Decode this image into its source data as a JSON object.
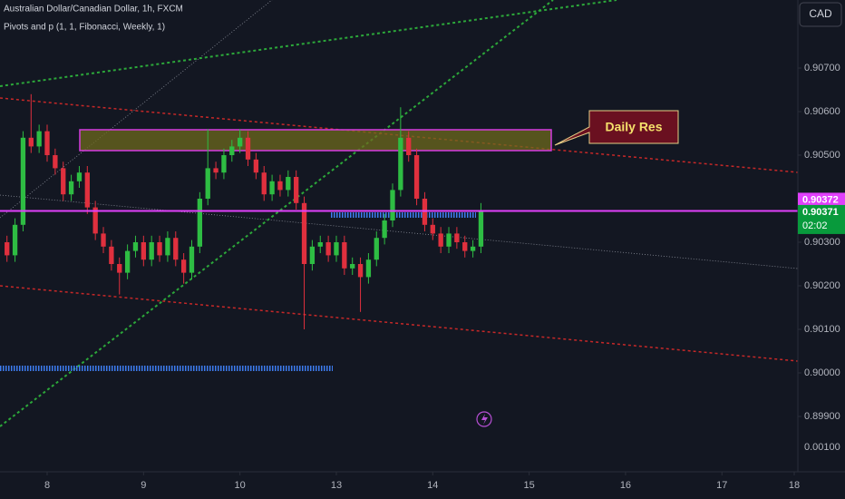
{
  "chart_data": {
    "type": "candlestick",
    "title": "Australian Dollar/Canadian Dollar, 1h, FXCM",
    "subtitle": "Pivots and p (1, 1, Fibonacci, Weekly, 1)",
    "currency_button": "CAD",
    "annotation": "Daily Res",
    "indicator_axis_label": "0.00100",
    "price_line": {
      "value": 0.90372,
      "label": "0.90372"
    },
    "last_price": {
      "label": "0.90371",
      "countdown": "02:02"
    },
    "up_color": "#2ebd43",
    "down_color": "#e0303e",
    "x": [
      -10,
      -8,
      -6,
      -4,
      -2,
      0,
      2,
      4,
      6,
      8,
      10,
      12,
      14,
      16,
      18,
      20,
      22,
      24,
      26,
      28,
      30,
      32,
      34,
      36,
      38,
      40,
      42,
      44,
      46,
      48,
      50,
      52,
      54,
      56,
      58,
      60,
      62,
      64,
      66,
      68,
      70,
      72,
      74,
      76,
      78,
      80,
      82,
      84,
      86,
      88,
      90,
      92,
      94,
      96,
      98,
      100,
      102,
      104,
      106,
      108
    ],
    "open": [
      0.903,
      0.9027,
      0.9034,
      0.9054,
      0.9052,
      0.90555,
      0.905,
      0.9047,
      0.9041,
      0.9044,
      0.9046,
      0.9038,
      0.9032,
      0.9029,
      0.9025,
      0.9023,
      0.9028,
      0.903,
      0.9026,
      0.903,
      0.9027,
      0.9031,
      0.9026,
      0.9023,
      0.9029,
      0.904,
      0.9047,
      0.9046,
      0.905,
      0.9052,
      0.9054,
      0.9049,
      0.9046,
      0.9041,
      0.9044,
      0.9042,
      0.9045,
      0.9039,
      0.9025,
      0.9029,
      0.903,
      0.9027,
      0.903,
      0.9024,
      0.9025,
      0.9022,
      0.9026,
      0.9031,
      0.9035,
      0.9042,
      0.9054,
      0.905,
      0.904,
      0.9034,
      0.9032,
      0.9029,
      0.9032,
      0.903,
      0.9028,
      0.9029
    ],
    "high": [
      0.90315,
      0.90355,
      0.90555,
      0.9064,
      0.9057,
      0.9057,
      0.90515,
      0.90485,
      0.90455,
      0.90475,
      0.90475,
      0.90395,
      0.90335,
      0.90305,
      0.90265,
      0.90295,
      0.90315,
      0.90315,
      0.90315,
      0.90315,
      0.90325,
      0.90325,
      0.90275,
      0.90305,
      0.90415,
      0.9056,
      0.90485,
      0.90515,
      0.90535,
      0.9056,
      0.90555,
      0.90505,
      0.90475,
      0.90455,
      0.90455,
      0.90465,
      0.90465,
      0.90405,
      0.90305,
      0.90315,
      0.90315,
      0.90315,
      0.90315,
      0.90265,
      0.90265,
      0.90275,
      0.90325,
      0.90365,
      0.90435,
      0.9061,
      0.90555,
      0.90515,
      0.90415,
      0.90355,
      0.90335,
      0.90335,
      0.90335,
      0.90315,
      0.90305,
      0.9039
    ],
    "low": [
      0.90255,
      0.90255,
      0.90325,
      0.90505,
      0.90505,
      0.90485,
      0.90455,
      0.90395,
      0.90395,
      0.90425,
      0.90365,
      0.90305,
      0.90275,
      0.90235,
      0.9018,
      0.90215,
      0.90265,
      0.90245,
      0.90245,
      0.90255,
      0.90255,
      0.90245,
      0.90205,
      0.90215,
      0.90275,
      0.90385,
      0.90445,
      0.90445,
      0.90485,
      0.90505,
      0.90475,
      0.90445,
      0.90395,
      0.90395,
      0.90405,
      0.90405,
      0.90375,
      0.901,
      0.90235,
      0.90275,
      0.90255,
      0.90255,
      0.90225,
      0.90225,
      0.9014,
      0.90205,
      0.90245,
      0.90295,
      0.90335,
      0.90405,
      0.90485,
      0.90385,
      0.90325,
      0.90305,
      0.90275,
      0.90275,
      0.90285,
      0.90265,
      0.90265,
      0.90275
    ],
    "close": [
      0.9027,
      0.9034,
      0.9054,
      0.9052,
      0.90555,
      0.905,
      0.9047,
      0.9041,
      0.9044,
      0.9046,
      0.9038,
      0.9032,
      0.9029,
      0.9025,
      0.9023,
      0.9028,
      0.903,
      0.9026,
      0.903,
      0.9027,
      0.9031,
      0.9026,
      0.9023,
      0.9029,
      0.904,
      0.9047,
      0.9046,
      0.905,
      0.9052,
      0.9054,
      0.9049,
      0.9046,
      0.9041,
      0.9044,
      0.9042,
      0.9045,
      0.9039,
      0.9025,
      0.9029,
      0.903,
      0.9027,
      0.903,
      0.9024,
      0.9025,
      0.9022,
      0.9026,
      0.9031,
      0.9035,
      0.9042,
      0.9054,
      0.905,
      0.904,
      0.9034,
      0.9032,
      0.9029,
      0.9032,
      0.903,
      0.9028,
      0.9029,
      0.90371
    ],
    "xlim": [
      -11.74,
      186.9
    ],
    "xticks": [
      {
        "value": 0,
        "label": "8"
      },
      {
        "value": 24,
        "label": "9"
      },
      {
        "value": 48,
        "label": "10"
      },
      {
        "value": 72,
        "label": "13"
      },
      {
        "value": 96,
        "label": "14"
      },
      {
        "value": 120,
        "label": "15"
      },
      {
        "value": 144,
        "label": "16"
      },
      {
        "value": 168,
        "label": "17"
      },
      {
        "value": 186,
        "label": "18"
      }
    ],
    "ylim": [
      0.897729,
      0.908563
    ],
    "yticks": [
      {
        "value": 0.907,
        "label": "0.90700"
      },
      {
        "value": 0.906,
        "label": "0.90600"
      },
      {
        "value": 0.905,
        "label": "0.90500"
      },
      {
        "value": 0.903,
        "label": "0.90300"
      },
      {
        "value": 0.902,
        "label": "0.90200"
      },
      {
        "value": 0.901,
        "label": "0.90100"
      },
      {
        "value": 0.9,
        "label": "0.90000"
      },
      {
        "value": 0.899,
        "label": "0.89900"
      }
    ],
    "grid": false
  }
}
